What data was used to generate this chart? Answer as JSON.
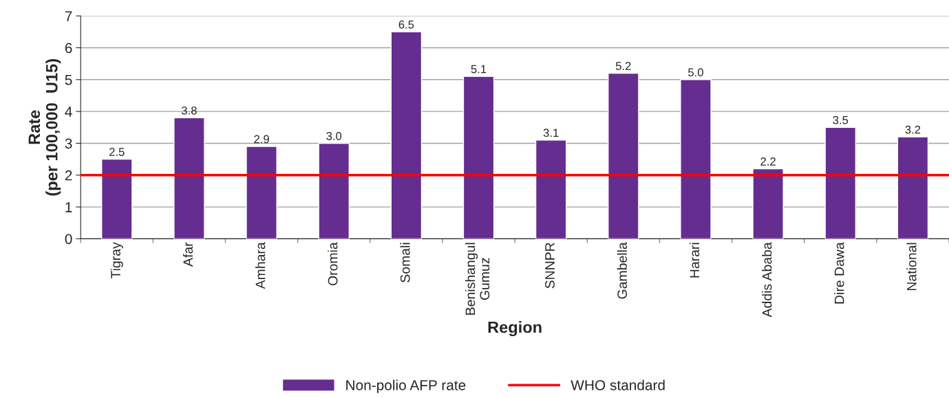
{
  "chart_data": {
    "type": "bar",
    "xlabel": "Region",
    "ylabel": "Rate\n(per 100,000  U15)",
    "categories": [
      "Tigray",
      "Afar",
      "Amhara",
      "Oromia",
      "Somali",
      "Benishangul\nGumuz",
      "SNNPR",
      "Gambella",
      "Harari",
      "Addis Ababa",
      "Dire Dawa",
      "National"
    ],
    "series": [
      {
        "name": "Non-polio AFP rate",
        "color": "#652d90",
        "values": [
          2.5,
          3.8,
          2.9,
          3.0,
          6.5,
          5.1,
          3.1,
          5.2,
          5.0,
          2.2,
          3.5,
          3.2
        ],
        "value_labels": [
          "2.5",
          "3.8",
          "2.9",
          "3.0",
          "6.5",
          "5.1",
          "3.1",
          "5.2",
          "5.0",
          "2.2",
          "3.5",
          "3.2"
        ]
      }
    ],
    "ref_lines": [
      {
        "axis": "y",
        "value": 2,
        "label": "WHO standard",
        "color": "#ff0000"
      }
    ],
    "ylim": [
      0,
      7
    ],
    "yticks": [
      0,
      1,
      2,
      3,
      4,
      5,
      6,
      7
    ],
    "grid": "y",
    "legend": "bottom"
  }
}
